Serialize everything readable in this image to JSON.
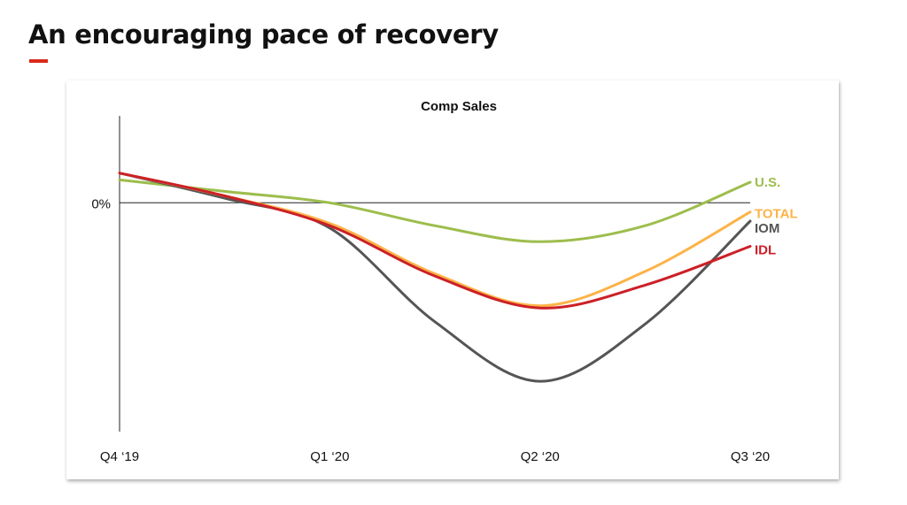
{
  "page": {
    "title": "An encouraging pace of recovery"
  },
  "chart_data": {
    "type": "line",
    "title": "Comp Sales",
    "xlabel": "",
    "ylabel": "",
    "x_ticks": [
      "Q4 ‘19",
      "Q1 ‘20",
      "Q2 ‘20",
      "Q3 ‘20"
    ],
    "y_ticks": [
      {
        "value": 0,
        "label": "0%"
      }
    ],
    "ylim": [
      -1.0,
      0.38
    ],
    "grid": false,
    "legend": "right-end-labels",
    "series": [
      {
        "name": "U.S.",
        "color": "#9dbd4c",
        "points": [
          [
            0,
            0.1
          ],
          [
            0.5,
            0.05
          ],
          [
            1,
            0.0
          ],
          [
            1.5,
            -0.1
          ],
          [
            2,
            -0.17
          ],
          [
            2.5,
            -0.1
          ],
          [
            3,
            0.09
          ]
        ]
      },
      {
        "name": "TOTAL",
        "color": "#fdb347",
        "points": [
          [
            0,
            0.13
          ],
          [
            0.5,
            0.03
          ],
          [
            1,
            -0.09
          ],
          [
            1.5,
            -0.31
          ],
          [
            2,
            -0.45
          ],
          [
            2.5,
            -0.3
          ],
          [
            3,
            -0.04
          ]
        ]
      },
      {
        "name": "IOM",
        "color": "#555555",
        "points": [
          [
            0,
            0.13
          ],
          [
            0.5,
            0.02
          ],
          [
            1,
            -0.11
          ],
          [
            1.5,
            -0.52
          ],
          [
            2,
            -0.78
          ],
          [
            2.5,
            -0.53
          ],
          [
            3,
            -0.08
          ]
        ]
      },
      {
        "name": "IDL",
        "color": "#cc2027",
        "points": [
          [
            0,
            0.13
          ],
          [
            0.5,
            0.03
          ],
          [
            1,
            -0.1
          ],
          [
            1.5,
            -0.32
          ],
          [
            2,
            -0.46
          ],
          [
            2.5,
            -0.36
          ],
          [
            3,
            -0.19
          ]
        ]
      }
    ]
  }
}
